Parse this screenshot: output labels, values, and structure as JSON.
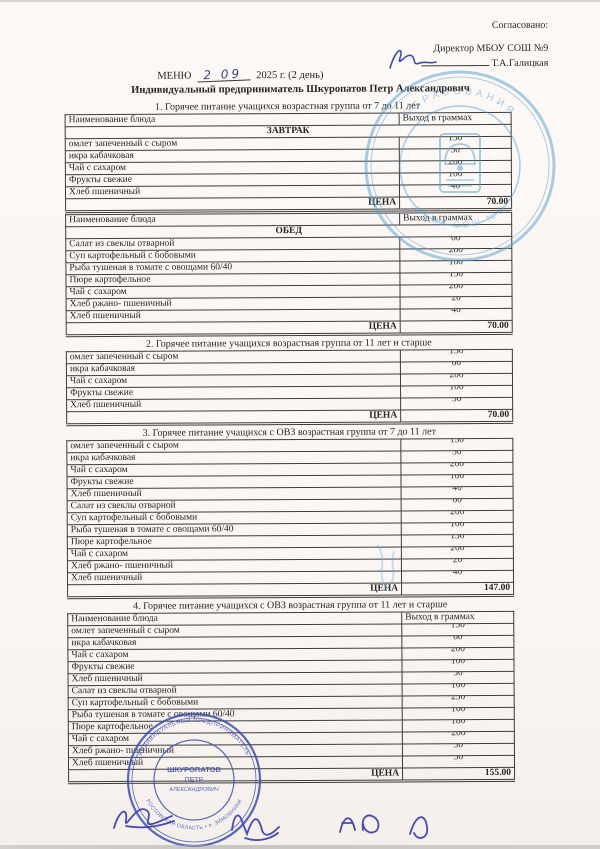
{
  "document": {
    "approved_label": "Согласовано:",
    "director_title": "Директор МБОУ СОШ №9",
    "director_name": "Т.А.Галицкая",
    "menu_label": "МЕНЮ",
    "menu_date_handwritten": "2 09",
    "menu_date_suffix": "2025 г. (2 день)",
    "vendor_line": "Индивидуальный предприниматель Шкуропатов Петр Александрович"
  },
  "columns": {
    "dish": "Наименование блюда",
    "weight": "Выход в граммах"
  },
  "price_label": "ЦЕНА",
  "sections": [
    {
      "title": "1. Горячее питание учащихся возрастная группа от 7 до 11 лет",
      "tables": [
        {
          "show_header": true,
          "band": "ЗАВТРАК",
          "rows": [
            [
              "омлет запеченный с сыром",
              "150"
            ],
            [
              "икра кабачковая",
              "30"
            ],
            [
              "Чай с сахаром",
              "200"
            ],
            [
              "Фрукты свежие",
              "100"
            ],
            [
              "Хлеб пшеничный",
              "40"
            ]
          ],
          "price": "70.00"
        },
        {
          "show_header": true,
          "band": "ОБЕД",
          "rows": [
            [
              "Салат из свеклы отварной",
              "60"
            ],
            [
              "Суп картофельный с бобовыми",
              "200"
            ],
            [
              "Рыба тушеная в томате с овощами 60/40",
              "100"
            ],
            [
              "Пюре картофельное",
              "150"
            ],
            [
              "Чай с сахаром",
              "200"
            ],
            [
              "Хлеб ржано- пшеничный",
              "20"
            ],
            [
              "Хлеб пшеничный",
              "40"
            ]
          ],
          "price": "70.00"
        }
      ]
    },
    {
      "title": "2. Горячее питание учащихся возрастная группа от 11 лет и старше",
      "tables": [
        {
          "show_header": false,
          "band": null,
          "rows": [
            [
              "омлет запеченный с сыром",
              "150"
            ],
            [
              "икра кабачковая",
              "60"
            ],
            [
              "Чай с сахаром",
              "200"
            ],
            [
              "Фрукты свежие",
              "100"
            ],
            [
              "Хлеб пшеничный",
              "50"
            ]
          ],
          "price": "70.00"
        }
      ]
    },
    {
      "title": "3. Горячее питание учащихся с ОВЗ возрастная группа от 7 до 11 лет",
      "tables": [
        {
          "show_header": false,
          "band": null,
          "rows": [
            [
              "омлет запеченный с сыром",
              "150"
            ],
            [
              "икра кабачковая",
              "30"
            ],
            [
              "Чай с сахаром",
              "200"
            ],
            [
              "Фрукты свежие",
              "100"
            ],
            [
              "Хлеб пшеничный",
              "40"
            ],
            [
              "Салат из свеклы отварной",
              "60"
            ],
            [
              "Суп картофельный с бобовыми",
              "200"
            ],
            [
              "Рыба тушеная в томате с овощами 60/40",
              "100"
            ],
            [
              "Пюре картофельное",
              "150"
            ],
            [
              "Чай с сахаром",
              "200"
            ],
            [
              "Хлеб ржано- пшеничный",
              "20"
            ],
            [
              "Хлеб пшеничный",
              "40"
            ]
          ],
          "price": "147.00"
        }
      ]
    },
    {
      "title": "4. Горячее питание учащихся с ОВЗ возрастная группа от 11 лет и старше",
      "tables": [
        {
          "show_header": true,
          "band": null,
          "rows": [
            [
              "омлет запеченный с сыром",
              "150"
            ],
            [
              "икра кабачковая",
              "60"
            ],
            [
              "Чай с сахаром",
              "200"
            ],
            [
              "Фрукты свежие",
              "100"
            ],
            [
              "Хлеб пшеничный",
              "50"
            ],
            [
              "Салат из свеклы отварной",
              "100"
            ],
            [
              "Суп картофельный с бобовыми",
              "250"
            ],
            [
              "Рыба тушеная в томате с овощами 60/40",
              "100"
            ],
            [
              "Пюре картофельное",
              "180"
            ],
            [
              "Чай с сахаром",
              "200"
            ],
            [
              "Хлеб ржано- пшеничный",
              "30"
            ],
            [
              "Хлеб пшеничный",
              "50"
            ]
          ],
          "price": "155.00"
        }
      ]
    }
  ],
  "stamps": {
    "school": {
      "arc_top": "ОБРАЗОВАНИЯ",
      "arc_bottom": "МБОУ СОШ №9",
      "color": "#58a0cf"
    },
    "entrepreneur": {
      "arc_top": "ИНДИВИДУАЛЬНЫЙ ПРЕДПРИНИМАТЕЛЬ",
      "center_line1": "ШКУРОПАТОВ",
      "center_line2": "ПЕТР",
      "center_line3": "АЛЕКСАНДРОВИЧ",
      "arc_bottom": "РОСТОВСКАЯ ОБЛАСТЬ • п. ЗИМОВНИКИ",
      "color": "#3b51b4"
    }
  }
}
